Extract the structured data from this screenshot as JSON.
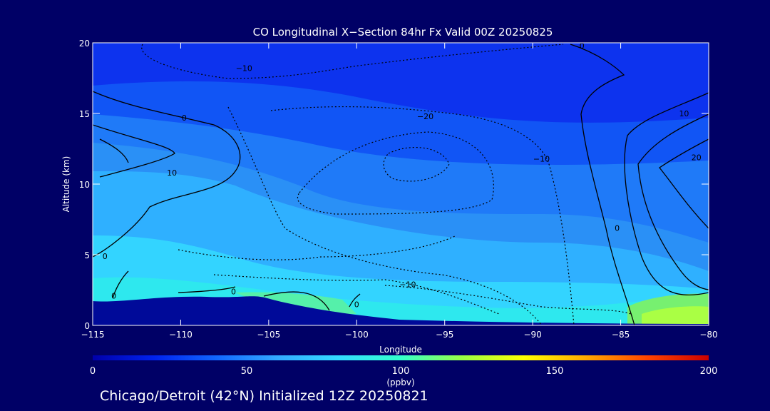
{
  "chart_data": {
    "type": "heatmap",
    "title": "CO Longitudinal X−Section 84hr  Fx Valid 00Z 20250825",
    "xlabel": "Longitude",
    "ylabel": "Altitude (km)",
    "xlim": [
      -115,
      -80
    ],
    "ylim": [
      0,
      20
    ],
    "x_ticks": [
      -115,
      -110,
      -105,
      -100,
      -95,
      -90,
      -85,
      -80
    ],
    "x_tick_labels": [
      "−115",
      "−110",
      "−105",
      "−100",
      "−95",
      "−90",
      "−85",
      "−80"
    ],
    "y_ticks": [
      0,
      5,
      10,
      15,
      20
    ],
    "y_tick_labels": [
      "0",
      "5",
      "10",
      "15",
      "20"
    ],
    "colorbar": {
      "label": "(ppbv)",
      "range": [
        0,
        200
      ],
      "ticks": [
        0,
        50,
        100,
        150,
        200
      ],
      "tick_labels": [
        "0",
        "50",
        "100",
        "150",
        "200"
      ],
      "colors": [
        "#0000aa",
        "#0022ee",
        "#1166ff",
        "#33aaff",
        "#33ddff",
        "#33ffcc",
        "#99ff44",
        "#ffff00",
        "#ffaa00",
        "#ff4400",
        "#cc0000"
      ]
    },
    "contour_labels": [
      {
        "text": "10",
        "lon": -110.5,
        "alt": 10.6
      },
      {
        "text": "0",
        "lon": -109.8,
        "alt": 14.5
      },
      {
        "text": "0",
        "lon": -114.3,
        "alt": 4.7
      },
      {
        "text": "0",
        "lon": -113.8,
        "alt": 1.9
      },
      {
        "text": "0",
        "lon": -107.0,
        "alt": 2.2
      },
      {
        "text": "0",
        "lon": -100.0,
        "alt": 1.3
      },
      {
        "text": "−10",
        "lon": -106.4,
        "alt": 18.0
      },
      {
        "text": "−20",
        "lon": -96.1,
        "alt": 14.6
      },
      {
        "text": "−10",
        "lon": -89.5,
        "alt": 11.6
      },
      {
        "text": "−10",
        "lon": -97.1,
        "alt": 2.7
      },
      {
        "text": "0",
        "lon": -87.2,
        "alt": 19.6
      },
      {
        "text": "0",
        "lon": -85.2,
        "alt": 6.7
      },
      {
        "text": "10",
        "lon": -81.4,
        "alt": 14.8
      },
      {
        "text": "20",
        "lon": -80.7,
        "alt": 11.7
      }
    ]
  },
  "footer": {
    "caption": "Chicago/Detroit (42°N) Initialized 12Z 20250821"
  }
}
